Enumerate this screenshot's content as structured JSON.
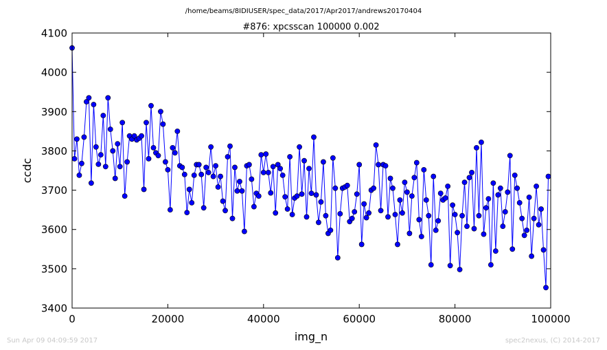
{
  "header": {
    "path": "/home/beams/8IDIUSER/spec_data/2017/Apr2017/andrews20170404"
  },
  "footer": {
    "timestamp": "Sun Apr 09 04:09:59 2017",
    "credit": "spec2nexus, (C) 2014-2017"
  },
  "chart_data": {
    "type": "line",
    "title": "#876: xpcsscan 100000 0.002",
    "xlabel": "img_n",
    "ylabel": "ccdc",
    "xlim": [
      0,
      100000
    ],
    "ylim": [
      3400,
      4100
    ],
    "xticks": [
      0,
      20000,
      40000,
      60000,
      80000,
      100000
    ],
    "yticks": [
      3400,
      3500,
      3600,
      3700,
      3800,
      3900,
      4000,
      4100
    ],
    "color": "#0000ff",
    "marker": "circle",
    "grid": false,
    "x_step": 500,
    "values": [
      4062,
      3780,
      3830,
      3738,
      3768,
      3835,
      3925,
      3935,
      3718,
      3918,
      3810,
      3766,
      3790,
      3890,
      3760,
      3935,
      3855,
      3800,
      3730,
      3818,
      3760,
      3872,
      3685,
      3772,
      3838,
      3830,
      3838,
      3828,
      3832,
      3838,
      3702,
      3872,
      3780,
      3915,
      3808,
      3795,
      3788,
      3900,
      3868,
      3772,
      3752,
      3650,
      3808,
      3795,
      3850,
      3762,
      3758,
      3740,
      3643,
      3702,
      3668,
      3738,
      3765,
      3765,
      3740,
      3655,
      3758,
      3745,
      3810,
      3735,
      3762,
      3708,
      3735,
      3672,
      3648,
      3785,
      3812,
      3628,
      3758,
      3698,
      3722,
      3698,
      3595,
      3762,
      3765,
      3728,
      3658,
      3692,
      3685,
      3790,
      3745,
      3792,
      3745,
      3693,
      3760,
      3642,
      3765,
      3755,
      3738,
      3683,
      3652,
      3785,
      3638,
      3680,
      3685,
      3810,
      3690,
      3775,
      3632,
      3755,
      3692,
      3835,
      3688,
      3618,
      3670,
      3772,
      3635,
      3590,
      3598,
      3782,
      3705,
      3528,
      3640,
      3705,
      3708,
      3712,
      3620,
      3628,
      3645,
      3690,
      3765,
      3562,
      3665,
      3630,
      3642,
      3700,
      3705,
      3815,
      3765,
      3648,
      3765,
      3762,
      3632,
      3730,
      3705,
      3638,
      3562,
      3675,
      3642,
      3720,
      3695,
      3590,
      3685,
      3732,
      3770,
      3625,
      3582,
      3752,
      3675,
      3635,
      3510,
      3735,
      3598,
      3622,
      3692,
      3675,
      3680,
      3710,
      3508,
      3662,
      3638,
      3592,
      3498,
      3635,
      3720,
      3608,
      3732,
      3745,
      3602,
      3808,
      3635,
      3822,
      3588,
      3655,
      3678,
      3510,
      3718,
      3545,
      3688,
      3705,
      3608,
      3645,
      3695,
      3788,
      3550,
      3738,
      3705,
      3668,
      3628,
      3585,
      3598,
      3682,
      3532,
      3628,
      3710,
      3612,
      3652,
      3548,
      3452,
      3735
    ]
  }
}
